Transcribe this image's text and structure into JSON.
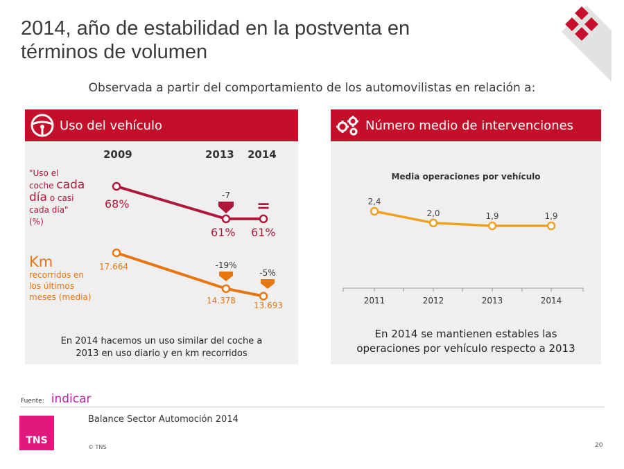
{
  "title_line1": "2014, año de estabilidad en la postventa en",
  "title_line2": "términos de volumen",
  "subtitle": "Observada a partir del comportamiento de los automovilistas en relación a:",
  "left_panel": {
    "header": "Uso del vehículo",
    "caption_line1": "En 2014 hacemos un uso similar del coche a",
    "caption_line2": "2013 en uso diario y en km recorridos"
  },
  "right_panel": {
    "header": "Número medio de intervenciones",
    "caption_line1": "En 2014 se mantienen estables las",
    "caption_line2": "operaciones por vehículo respecto a 2013"
  },
  "chart_data": [
    {
      "type": "line",
      "title": "Uso del vehículo",
      "categories": [
        "2009",
        "2013",
        "2014"
      ],
      "series": [
        {
          "name": "\"Uso el coche cada día o casi cada día\" (%)",
          "label_parts": [
            "\"Uso el",
            "coche",
            "cada",
            "día",
            "o casi",
            "cada día\"",
            "(%)"
          ],
          "values": [
            68,
            61,
            61
          ],
          "value_labels": [
            "68%",
            "61%",
            "61%"
          ],
          "change_labels": [
            "-7",
            "="
          ],
          "color": "#b0173a"
        },
        {
          "name": "Km recorridos en los últimos meses (media)",
          "label_parts": [
            "Km",
            "recorridos en",
            "los últimos",
            "meses (media)"
          ],
          "values": [
            17664,
            14378,
            13693
          ],
          "value_labels": [
            "17.664",
            "14.378",
            "13.693"
          ],
          "change_labels": [
            "-19%",
            "-5%"
          ],
          "color": "#e8760f"
        }
      ]
    },
    {
      "type": "line",
      "title": "Media operaciones por vehículo",
      "categories": [
        "2011",
        "2012",
        "2013",
        "2014"
      ],
      "values": [
        2.4,
        2.0,
        1.9,
        1.9
      ],
      "value_labels": [
        "2,4",
        "2,0",
        "1,9",
        "1,9"
      ],
      "ylim": [
        0,
        2.6
      ],
      "color": "#f0a020"
    }
  ],
  "footer": {
    "source_label": "Fuente:",
    "source_value": "indicar",
    "logo_text": "TNS",
    "text": "Balance Sector Automoción 2014",
    "copyright": "© TNS",
    "page": "20"
  },
  "colors": {
    "header_red": "#c40f2a",
    "logo_red": "#c8102e",
    "tns_pink": "#e0197d",
    "source_magenta": "#c020b0"
  }
}
